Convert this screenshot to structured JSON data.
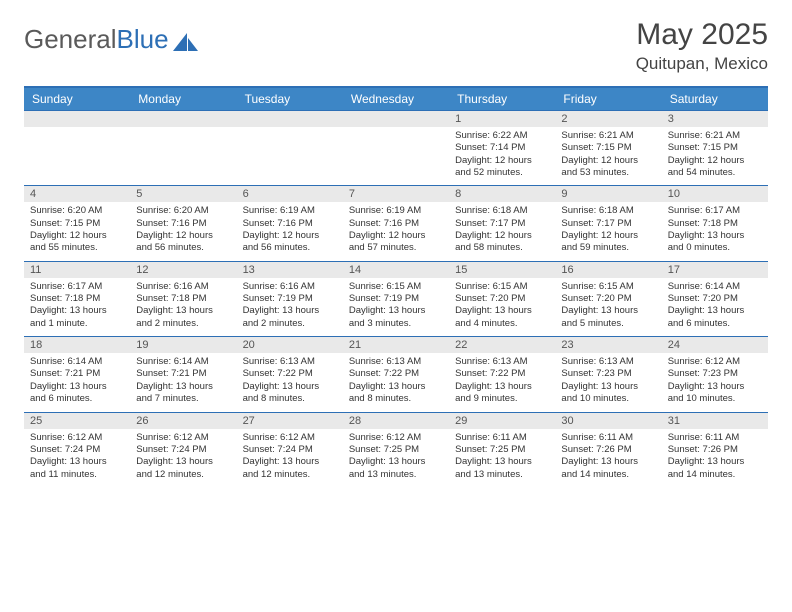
{
  "brand": {
    "part1": "General",
    "part2": "Blue"
  },
  "title": "May 2025",
  "location": "Quitupan, Mexico",
  "colors": {
    "header_bar": "#3d86c6",
    "rule": "#2d6fb5",
    "daynum_bg": "#e9e9e9",
    "text": "#333333",
    "logo_gray": "#5a5a5a",
    "logo_blue": "#2d6fb5"
  },
  "days_of_week": [
    "Sunday",
    "Monday",
    "Tuesday",
    "Wednesday",
    "Thursday",
    "Friday",
    "Saturday"
  ],
  "weeks": [
    [
      {
        "num": "",
        "lines": []
      },
      {
        "num": "",
        "lines": []
      },
      {
        "num": "",
        "lines": []
      },
      {
        "num": "",
        "lines": []
      },
      {
        "num": "1",
        "lines": [
          "Sunrise: 6:22 AM",
          "Sunset: 7:14 PM",
          "Daylight: 12 hours and 52 minutes."
        ]
      },
      {
        "num": "2",
        "lines": [
          "Sunrise: 6:21 AM",
          "Sunset: 7:15 PM",
          "Daylight: 12 hours and 53 minutes."
        ]
      },
      {
        "num": "3",
        "lines": [
          "Sunrise: 6:21 AM",
          "Sunset: 7:15 PM",
          "Daylight: 12 hours and 54 minutes."
        ]
      }
    ],
    [
      {
        "num": "4",
        "lines": [
          "Sunrise: 6:20 AM",
          "Sunset: 7:15 PM",
          "Daylight: 12 hours and 55 minutes."
        ]
      },
      {
        "num": "5",
        "lines": [
          "Sunrise: 6:20 AM",
          "Sunset: 7:16 PM",
          "Daylight: 12 hours and 56 minutes."
        ]
      },
      {
        "num": "6",
        "lines": [
          "Sunrise: 6:19 AM",
          "Sunset: 7:16 PM",
          "Daylight: 12 hours and 56 minutes."
        ]
      },
      {
        "num": "7",
        "lines": [
          "Sunrise: 6:19 AM",
          "Sunset: 7:16 PM",
          "Daylight: 12 hours and 57 minutes."
        ]
      },
      {
        "num": "8",
        "lines": [
          "Sunrise: 6:18 AM",
          "Sunset: 7:17 PM",
          "Daylight: 12 hours and 58 minutes."
        ]
      },
      {
        "num": "9",
        "lines": [
          "Sunrise: 6:18 AM",
          "Sunset: 7:17 PM",
          "Daylight: 12 hours and 59 minutes."
        ]
      },
      {
        "num": "10",
        "lines": [
          "Sunrise: 6:17 AM",
          "Sunset: 7:18 PM",
          "Daylight: 13 hours and 0 minutes."
        ]
      }
    ],
    [
      {
        "num": "11",
        "lines": [
          "Sunrise: 6:17 AM",
          "Sunset: 7:18 PM",
          "Daylight: 13 hours and 1 minute."
        ]
      },
      {
        "num": "12",
        "lines": [
          "Sunrise: 6:16 AM",
          "Sunset: 7:18 PM",
          "Daylight: 13 hours and 2 minutes."
        ]
      },
      {
        "num": "13",
        "lines": [
          "Sunrise: 6:16 AM",
          "Sunset: 7:19 PM",
          "Daylight: 13 hours and 2 minutes."
        ]
      },
      {
        "num": "14",
        "lines": [
          "Sunrise: 6:15 AM",
          "Sunset: 7:19 PM",
          "Daylight: 13 hours and 3 minutes."
        ]
      },
      {
        "num": "15",
        "lines": [
          "Sunrise: 6:15 AM",
          "Sunset: 7:20 PM",
          "Daylight: 13 hours and 4 minutes."
        ]
      },
      {
        "num": "16",
        "lines": [
          "Sunrise: 6:15 AM",
          "Sunset: 7:20 PM",
          "Daylight: 13 hours and 5 minutes."
        ]
      },
      {
        "num": "17",
        "lines": [
          "Sunrise: 6:14 AM",
          "Sunset: 7:20 PM",
          "Daylight: 13 hours and 6 minutes."
        ]
      }
    ],
    [
      {
        "num": "18",
        "lines": [
          "Sunrise: 6:14 AM",
          "Sunset: 7:21 PM",
          "Daylight: 13 hours and 6 minutes."
        ]
      },
      {
        "num": "19",
        "lines": [
          "Sunrise: 6:14 AM",
          "Sunset: 7:21 PM",
          "Daylight: 13 hours and 7 minutes."
        ]
      },
      {
        "num": "20",
        "lines": [
          "Sunrise: 6:13 AM",
          "Sunset: 7:22 PM",
          "Daylight: 13 hours and 8 minutes."
        ]
      },
      {
        "num": "21",
        "lines": [
          "Sunrise: 6:13 AM",
          "Sunset: 7:22 PM",
          "Daylight: 13 hours and 8 minutes."
        ]
      },
      {
        "num": "22",
        "lines": [
          "Sunrise: 6:13 AM",
          "Sunset: 7:22 PM",
          "Daylight: 13 hours and 9 minutes."
        ]
      },
      {
        "num": "23",
        "lines": [
          "Sunrise: 6:13 AM",
          "Sunset: 7:23 PM",
          "Daylight: 13 hours and 10 minutes."
        ]
      },
      {
        "num": "24",
        "lines": [
          "Sunrise: 6:12 AM",
          "Sunset: 7:23 PM",
          "Daylight: 13 hours and 10 minutes."
        ]
      }
    ],
    [
      {
        "num": "25",
        "lines": [
          "Sunrise: 6:12 AM",
          "Sunset: 7:24 PM",
          "Daylight: 13 hours and 11 minutes."
        ]
      },
      {
        "num": "26",
        "lines": [
          "Sunrise: 6:12 AM",
          "Sunset: 7:24 PM",
          "Daylight: 13 hours and 12 minutes."
        ]
      },
      {
        "num": "27",
        "lines": [
          "Sunrise: 6:12 AM",
          "Sunset: 7:24 PM",
          "Daylight: 13 hours and 12 minutes."
        ]
      },
      {
        "num": "28",
        "lines": [
          "Sunrise: 6:12 AM",
          "Sunset: 7:25 PM",
          "Daylight: 13 hours and 13 minutes."
        ]
      },
      {
        "num": "29",
        "lines": [
          "Sunrise: 6:11 AM",
          "Sunset: 7:25 PM",
          "Daylight: 13 hours and 13 minutes."
        ]
      },
      {
        "num": "30",
        "lines": [
          "Sunrise: 6:11 AM",
          "Sunset: 7:26 PM",
          "Daylight: 13 hours and 14 minutes."
        ]
      },
      {
        "num": "31",
        "lines": [
          "Sunrise: 6:11 AM",
          "Sunset: 7:26 PM",
          "Daylight: 13 hours and 14 minutes."
        ]
      }
    ]
  ]
}
